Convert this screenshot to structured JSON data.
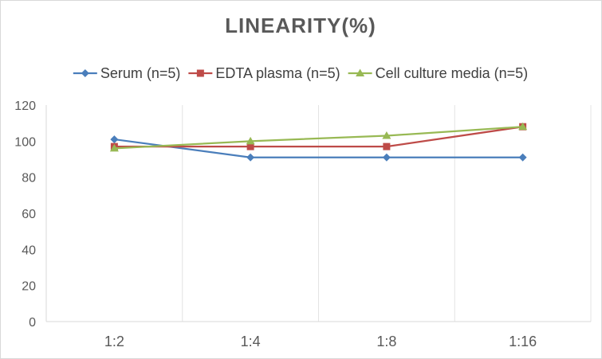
{
  "chart_data": {
    "type": "line",
    "title": "LINEARITY(%)",
    "xlabel": "",
    "ylabel": "",
    "categories": [
      "1:2",
      "1:4",
      "1:8",
      "1:16"
    ],
    "ylim": [
      0,
      120
    ],
    "yticks": [
      0,
      20,
      40,
      60,
      80,
      100,
      120
    ],
    "grid": "vertical",
    "legend_position": "top",
    "series": [
      {
        "name": "Serum (n=5)",
        "color": "#4a7ebb",
        "marker": "diamond",
        "values": [
          101,
          91,
          91,
          91
        ]
      },
      {
        "name": "EDTA plasma (n=5)",
        "color": "#be4b48",
        "marker": "square",
        "values": [
          97,
          97,
          97,
          108
        ]
      },
      {
        "name": "Cell culture media (n=5)",
        "color": "#98b954",
        "marker": "triangle",
        "values": [
          96,
          100,
          103,
          108
        ]
      }
    ]
  }
}
